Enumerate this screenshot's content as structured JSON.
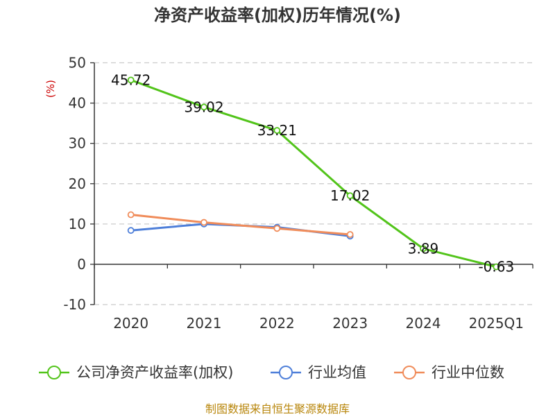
{
  "chart_data": {
    "type": "line",
    "title": "净资产收益率(加权)历年情况(%)",
    "ylabel": "(%)",
    "xlabel": "",
    "categories": [
      "2020",
      "2021",
      "2022",
      "2023",
      "2024",
      "2025Q1"
    ],
    "y_ticks": [
      50,
      40,
      30,
      20,
      10,
      0,
      -10
    ],
    "ylim": [
      -10,
      50
    ],
    "grid": true,
    "legend_position": "bottom",
    "series": [
      {
        "name": "公司净资产收益率(加权)",
        "color": "#52c41a",
        "values": [
          45.72,
          39.02,
          33.21,
          17.02,
          3.89,
          -0.63
        ],
        "labels": [
          "45.72",
          "39.02",
          "33.21",
          "17.02",
          "3.89",
          "-0.63"
        ]
      },
      {
        "name": "行业均值",
        "color": "#4e7fd9",
        "values": [
          8.4,
          10.0,
          9.2,
          7.0,
          null,
          null
        ]
      },
      {
        "name": "行业中位数",
        "color": "#f08c5a",
        "values": [
          12.3,
          10.4,
          8.9,
          7.4,
          null,
          null
        ]
      }
    ],
    "source": "制图数据来自恒生聚源数据库",
    "colors": {
      "ylabel": "#cc0000",
      "source": "#b8860b",
      "grid": "#cccccc",
      "axis": "#333333"
    }
  }
}
